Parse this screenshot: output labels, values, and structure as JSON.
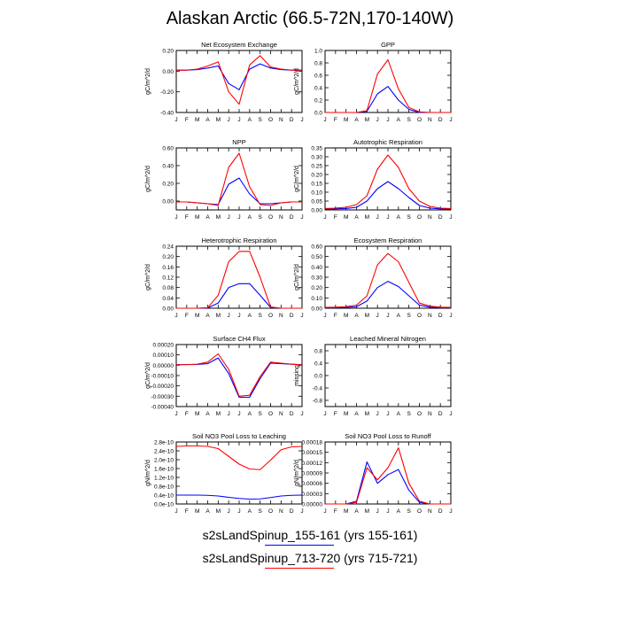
{
  "title": "Alaskan Arctic (66.5-72N,170-140W)",
  "legend": [
    {
      "label": "s2sLandSpinup_155-161 (yrs 155-161)",
      "color": "#0000ff"
    },
    {
      "label": "s2sLandSpinup_713-720 (yrs 715-721)",
      "color": "#ff0000"
    }
  ],
  "chart_data": [
    {
      "type": "line",
      "title": "Net Ecosystem Exchange",
      "ylabel": "gC/m^2/d",
      "x": [
        "J",
        "F",
        "M",
        "A",
        "M",
        "J",
        "J",
        "A",
        "S",
        "O",
        "N",
        "D",
        "J"
      ],
      "ylim": [
        -0.4,
        0.2
      ],
      "yticks": [
        "0.20",
        "0.00",
        "-0.20",
        "-0.40"
      ],
      "yticks_values": [
        0.2,
        0.0,
        -0.2,
        -0.4
      ],
      "series": [
        {
          "color": "#0000ff",
          "values": [
            0.01,
            0.01,
            0.015,
            0.03,
            0.05,
            -0.12,
            -0.18,
            0.02,
            0.07,
            0.03,
            0.015,
            0.01,
            0.01
          ]
        },
        {
          "color": "#ff0000",
          "values": [
            0.01,
            0.01,
            0.02,
            0.05,
            0.09,
            -0.2,
            -0.32,
            0.06,
            0.15,
            0.04,
            0.02,
            0.01,
            0.01
          ]
        }
      ]
    },
    {
      "type": "line",
      "title": "GPP",
      "ylabel": "gC/m^2/d",
      "x": [
        "J",
        "F",
        "M",
        "A",
        "M",
        "J",
        "J",
        "A",
        "S",
        "O",
        "N",
        "D",
        "J"
      ],
      "ylim": [
        0.0,
        1.0
      ],
      "yticks": [
        "1.0",
        "0.8",
        "0.6",
        "0.4",
        "0.2",
        "0.0"
      ],
      "yticks_values": [
        1.0,
        0.8,
        0.6,
        0.4,
        0.2,
        0.0
      ],
      "series": [
        {
          "color": "#0000ff",
          "values": [
            0,
            0,
            0,
            0,
            0.02,
            0.3,
            0.42,
            0.2,
            0.05,
            0.0,
            0,
            0,
            0
          ]
        },
        {
          "color": "#ff0000",
          "values": [
            0,
            0,
            0,
            0,
            0.03,
            0.62,
            0.85,
            0.38,
            0.08,
            0.01,
            0,
            0,
            0
          ]
        }
      ]
    },
    {
      "type": "line",
      "title": "NPP",
      "ylabel": "gC/m^2/d",
      "x": [
        "J",
        "F",
        "M",
        "A",
        "M",
        "J",
        "J",
        "A",
        "S",
        "O",
        "N",
        "D",
        "J"
      ],
      "ylim": [
        -0.1,
        0.6
      ],
      "yticks": [
        "0.60",
        "0.40",
        "0.20",
        "0.00"
      ],
      "yticks_values": [
        0.6,
        0.4,
        0.2,
        0.0
      ],
      "series": [
        {
          "color": "#0000ff",
          "values": [
            -0.01,
            -0.01,
            -0.02,
            -0.03,
            -0.04,
            0.19,
            0.26,
            0.08,
            -0.03,
            -0.03,
            -0.02,
            -0.01,
            -0.01
          ]
        },
        {
          "color": "#ff0000",
          "values": [
            -0.01,
            -0.01,
            -0.02,
            -0.03,
            -0.05,
            0.38,
            0.54,
            0.16,
            -0.04,
            -0.05,
            -0.02,
            -0.01,
            -0.01
          ]
        }
      ]
    },
    {
      "type": "line",
      "title": "Autotrophic Respiration",
      "ylabel": "gC/m^2/d",
      "x": [
        "J",
        "F",
        "M",
        "A",
        "M",
        "J",
        "J",
        "A",
        "S",
        "O",
        "N",
        "D",
        "J"
      ],
      "ylim": [
        0.0,
        0.35
      ],
      "yticks": [
        "0.35",
        "0.30",
        "0.25",
        "0.20",
        "0.15",
        "0.10",
        "0.05",
        "0.00"
      ],
      "yticks_values": [
        0.35,
        0.3,
        0.25,
        0.2,
        0.15,
        0.1,
        0.05,
        0.0
      ],
      "series": [
        {
          "color": "#0000ff",
          "values": [
            0.005,
            0.006,
            0.008,
            0.015,
            0.05,
            0.12,
            0.16,
            0.12,
            0.07,
            0.025,
            0.01,
            0.006,
            0.005
          ]
        },
        {
          "color": "#ff0000",
          "values": [
            0.008,
            0.01,
            0.015,
            0.03,
            0.08,
            0.23,
            0.31,
            0.24,
            0.12,
            0.05,
            0.02,
            0.01,
            0.008
          ]
        }
      ]
    },
    {
      "type": "line",
      "title": "Heterotrophic Respiration",
      "ylabel": "gC/m^2/d",
      "x": [
        "J",
        "F",
        "M",
        "A",
        "M",
        "J",
        "J",
        "A",
        "S",
        "O",
        "N",
        "D",
        "J"
      ],
      "ylim": [
        0.0,
        0.24
      ],
      "yticks": [
        "0.24",
        "0.20",
        "0.16",
        "0.12",
        "0.08",
        "0.04",
        "0.00"
      ],
      "yticks_values": [
        0.24,
        0.2,
        0.16,
        0.12,
        0.08,
        0.04,
        0.0
      ],
      "series": [
        {
          "color": "#0000ff",
          "values": [
            0.0,
            0.0,
            0.0,
            0.001,
            0.02,
            0.08,
            0.095,
            0.095,
            0.05,
            0.003,
            0.0,
            0.0,
            0.0
          ]
        },
        {
          "color": "#ff0000",
          "values": [
            0.0,
            0.0,
            0.0,
            0.002,
            0.05,
            0.18,
            0.22,
            0.22,
            0.12,
            0.005,
            0.0,
            0.0,
            0.0
          ]
        }
      ]
    },
    {
      "type": "line",
      "title": "Ecosystem Respiration",
      "ylabel": "gC/m^2/d",
      "x": [
        "J",
        "F",
        "M",
        "A",
        "M",
        "J",
        "J",
        "A",
        "S",
        "O",
        "N",
        "D",
        "J"
      ],
      "ylim": [
        0.0,
        0.6
      ],
      "yticks": [
        "0.60",
        "0.50",
        "0.40",
        "0.30",
        "0.20",
        "0.10",
        "0.00"
      ],
      "yticks_values": [
        0.6,
        0.5,
        0.4,
        0.3,
        0.2,
        0.1,
        0.0
      ],
      "series": [
        {
          "color": "#0000ff",
          "values": [
            0.005,
            0.006,
            0.008,
            0.015,
            0.07,
            0.2,
            0.26,
            0.21,
            0.12,
            0.03,
            0.01,
            0.006,
            0.005
          ]
        },
        {
          "color": "#ff0000",
          "values": [
            0.008,
            0.01,
            0.015,
            0.03,
            0.12,
            0.42,
            0.53,
            0.45,
            0.25,
            0.05,
            0.02,
            0.01,
            0.008
          ]
        }
      ]
    },
    {
      "type": "line",
      "title": "Surface CH4 Flux",
      "ylabel": "gC/m^2/d",
      "x": [
        "J",
        "F",
        "M",
        "A",
        "M",
        "J",
        "J",
        "A",
        "S",
        "O",
        "N",
        "D",
        "J"
      ],
      "ylim": [
        -0.0004,
        0.0002
      ],
      "yticks": [
        "0.00020",
        "0.00010",
        "0.00000",
        "-0.00010",
        "-0.00020",
        "-0.00030",
        "-0.00040"
      ],
      "yticks_values": [
        0.0002,
        0.0001,
        0.0,
        -0.0001,
        -0.0002,
        -0.0003,
        -0.0004
      ],
      "series": [
        {
          "color": "#0000ff",
          "values": [
            5e-06,
            6e-06,
            8e-06,
            1.5e-05,
            7e-05,
            -8e-05,
            -0.00031,
            -0.00031,
            -0.00013,
            2e-05,
            1.5e-05,
            1e-05,
            5e-06
          ]
        },
        {
          "color": "#ff0000",
          "values": [
            5e-06,
            6e-06,
            1e-05,
            3e-05,
            0.00011,
            -4e-05,
            -0.0003,
            -0.00029,
            -0.00011,
            3e-05,
            2e-05,
            1e-05,
            5e-06
          ]
        }
      ]
    },
    {
      "type": "line",
      "title": "Leached Mineral Nitrogen",
      "ylabel": "missing",
      "x": [
        "J",
        "F",
        "M",
        "A",
        "M",
        "J",
        "J",
        "A",
        "S",
        "O",
        "N",
        "D",
        "J"
      ],
      "ylim": [
        -1.0,
        1.0
      ],
      "yticks": [
        "0.8",
        "0.4",
        "0.0",
        "-0.4",
        "-0.8"
      ],
      "yticks_values": [
        0.8,
        0.4,
        0.0,
        -0.4,
        -0.8
      ],
      "series": []
    },
    {
      "type": "line",
      "title": "Soil NO3 Pool Loss to Leaching",
      "ylabel": "gN/m^2/d",
      "x": [
        "J",
        "F",
        "M",
        "A",
        "M",
        "J",
        "J",
        "A",
        "S",
        "O",
        "N",
        "D",
        "J"
      ],
      "ylim": [
        0.0,
        2.8e-10
      ],
      "yticks": [
        "2.8e-10",
        "2.4e-10",
        "2.0e-10",
        "1.6e-10",
        "1.2e-10",
        "0.8e-10",
        "0.4e-10",
        "0.0e-10"
      ],
      "yticks_values": [
        2.8e-10,
        2.4e-10,
        2e-10,
        1.6e-10,
        1.2e-10,
        8e-11,
        4e-11,
        0.0
      ],
      "series": [
        {
          "color": "#0000ff",
          "values": [
            4e-11,
            4e-11,
            4e-11,
            3.9e-11,
            3.6e-11,
            3e-11,
            2.5e-11,
            2.2e-11,
            2.3e-11,
            2.9e-11,
            3.6e-11,
            3.9e-11,
            4e-11
          ]
        },
        {
          "color": "#ff0000",
          "values": [
            2.6e-10,
            2.62e-10,
            2.62e-10,
            2.6e-10,
            2.5e-10,
            2.15e-10,
            1.8e-10,
            1.58e-10,
            1.55e-10,
            1.98e-10,
            2.45e-10,
            2.58e-10,
            2.6e-10
          ]
        }
      ]
    },
    {
      "type": "line",
      "title": "Soil NO3 Pool Loss to Runoff",
      "ylabel": "gN/m^2/d",
      "x": [
        "J",
        "F",
        "M",
        "A",
        "M",
        "J",
        "J",
        "A",
        "S",
        "O",
        "N",
        "D",
        "J"
      ],
      "ylim": [
        0.0,
        0.00018
      ],
      "yticks": [
        "0.00018",
        "0.00015",
        "0.00012",
        "0.00009",
        "0.00006",
        "0.00003",
        "0.00000"
      ],
      "yticks_values": [
        0.00018,
        0.00015,
        0.00012,
        9e-05,
        6e-05,
        3e-05,
        0.0
      ],
      "series": [
        {
          "color": "#0000ff",
          "values": [
            0.0,
            0.0,
            0.0,
            8e-06,
            0.000122,
            6e-05,
            8.5e-05,
            0.0001,
            4e-05,
            5e-06,
            0.0,
            0.0,
            0.0
          ]
        },
        {
          "color": "#ff0000",
          "values": [
            0.0,
            0.0,
            0.0,
            5e-06,
            0.000105,
            7e-05,
            0.000105,
            0.000163,
            6e-05,
            8e-06,
            0.0,
            0.0,
            0.0
          ]
        }
      ]
    }
  ]
}
